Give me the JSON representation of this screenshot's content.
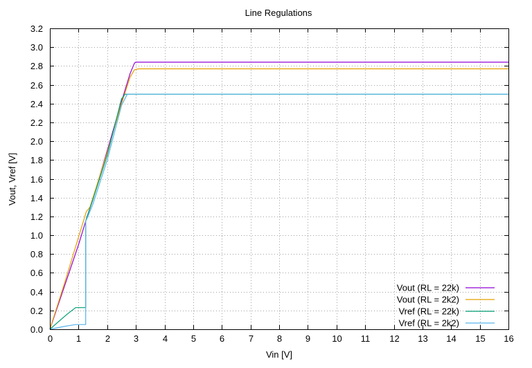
{
  "chart_data": {
    "type": "line",
    "title": "Line Regulations",
    "xlabel": "Vin [V]",
    "ylabel": "Vout, Vref [V]",
    "xlim": [
      0,
      16
    ],
    "ylim": [
      0,
      3.2
    ],
    "x_ticks": [
      "0",
      "1",
      "2",
      "3",
      "4",
      "5",
      "6",
      "7",
      "8",
      "9",
      "10",
      "11",
      "12",
      "13",
      "14",
      "15",
      "16"
    ],
    "y_ticks": [
      "0.0",
      "0.2",
      "0.4",
      "0.6",
      "0.8",
      "1.0",
      "1.2",
      "1.4",
      "1.6",
      "1.8",
      "2.0",
      "2.2",
      "2.4",
      "2.6",
      "2.8",
      "3.0",
      "3.2"
    ],
    "grid": true,
    "legend_position": "bottom-right",
    "series": [
      {
        "name": "Vout (RL = 22k)",
        "color": "#9400d3",
        "points": [
          [
            0,
            0
          ],
          [
            0.5,
            0.45
          ],
          [
            1.0,
            0.9
          ],
          [
            1.2,
            1.1
          ],
          [
            1.3,
            1.2
          ],
          [
            1.5,
            1.38
          ],
          [
            2.0,
            1.9
          ],
          [
            2.5,
            2.42
          ],
          [
            2.8,
            2.72
          ],
          [
            2.95,
            2.83
          ],
          [
            3.0,
            2.84
          ],
          [
            16,
            2.84
          ]
        ]
      },
      {
        "name": "Vout (RL = 2k2)",
        "color": "#e69f00",
        "points": [
          [
            0,
            0
          ],
          [
            0.5,
            0.48
          ],
          [
            1.0,
            0.98
          ],
          [
            1.2,
            1.18
          ],
          [
            1.27,
            1.25
          ],
          [
            1.4,
            1.3
          ],
          [
            2.0,
            1.88
          ],
          [
            2.5,
            2.4
          ],
          [
            2.8,
            2.68
          ],
          [
            2.95,
            2.76
          ],
          [
            3.1,
            2.77
          ],
          [
            16,
            2.77
          ]
        ]
      },
      {
        "name": "Vref (RL = 22k)",
        "color": "#009e73",
        "points": [
          [
            0,
            0
          ],
          [
            0.3,
            0.08
          ],
          [
            0.6,
            0.16
          ],
          [
            0.9,
            0.23
          ],
          [
            1.25,
            0.23
          ],
          [
            1.25,
            1.15
          ],
          [
            1.3,
            1.2
          ],
          [
            1.5,
            1.38
          ],
          [
            2.0,
            1.85
          ],
          [
            2.5,
            2.45
          ],
          [
            2.62,
            2.5
          ],
          [
            16,
            2.5
          ]
        ]
      },
      {
        "name": "Vref (RL = 2k2)",
        "color": "#56b4e9",
        "points": [
          [
            0,
            0
          ],
          [
            0.5,
            0.03
          ],
          [
            0.9,
            0.05
          ],
          [
            1.25,
            0.05
          ],
          [
            1.25,
            1.15
          ],
          [
            1.3,
            1.18
          ],
          [
            1.5,
            1.33
          ],
          [
            2.0,
            1.8
          ],
          [
            2.5,
            2.38
          ],
          [
            2.7,
            2.5
          ],
          [
            16,
            2.5
          ]
        ]
      }
    ]
  }
}
